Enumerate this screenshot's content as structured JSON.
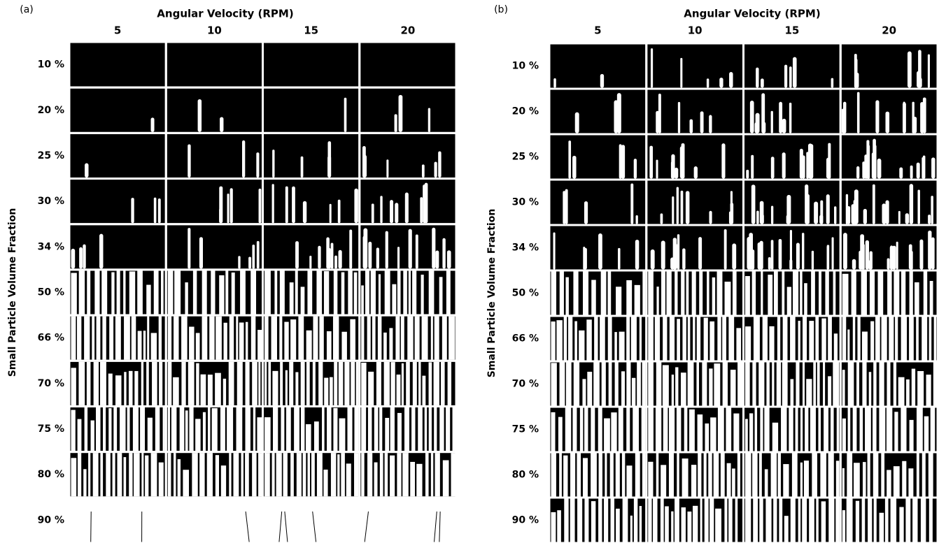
{
  "panels": [
    {
      "label": "(a)",
      "title": "Angular Velocity (RPM)",
      "y_label": "Small Particle Volume Fraction",
      "columns": [
        "5",
        "10",
        "15",
        "20"
      ],
      "rows": [
        "10 %",
        "20 %",
        "25 %",
        "30 %",
        "34 %",
        "50 %",
        "66 %",
        "70 %",
        "75 %",
        "80 %",
        "90 %"
      ]
    },
    {
      "label": "(b)",
      "title": "Angular Velocity (RPM)",
      "y_label": "Small Particle Volume Fraction",
      "columns": [
        "5",
        "10",
        "15",
        "20"
      ],
      "rows": [
        "10 %",
        "20 %",
        "25 %",
        "30 %",
        "34 %",
        "50 %",
        "66 %",
        "70 %",
        "75 %",
        "80 %",
        "90 %"
      ]
    }
  ]
}
